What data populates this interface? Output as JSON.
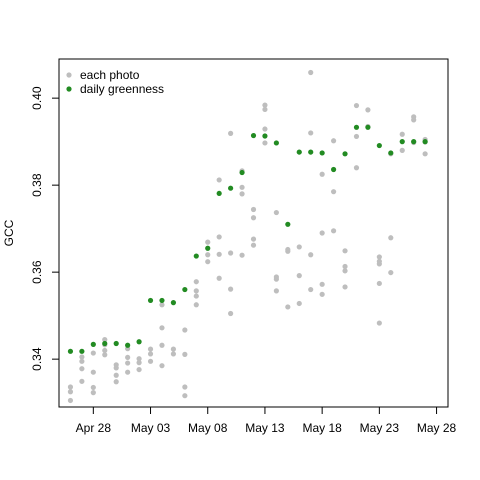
{
  "chart_data": {
    "type": "scatter",
    "title": "",
    "xlabel": "",
    "ylabel": "GCC",
    "xlim": [
      "2016-04-25",
      "2016-05-29"
    ],
    "ylim": [
      0.329,
      0.409
    ],
    "x_ticks": [
      {
        "date": "2016-04-28",
        "label": "Apr 28"
      },
      {
        "date": "2016-05-03",
        "label": "May 03"
      },
      {
        "date": "2016-05-08",
        "label": "May 08"
      },
      {
        "date": "2016-05-13",
        "label": "May 13"
      },
      {
        "date": "2016-05-18",
        "label": "May 18"
      },
      {
        "date": "2016-05-23",
        "label": "May 23"
      },
      {
        "date": "2016-05-28",
        "label": "May 28"
      }
    ],
    "y_ticks": [
      {
        "value": 0.34,
        "label": "0.34"
      },
      {
        "value": 0.36,
        "label": "0.36"
      },
      {
        "value": 0.38,
        "label": "0.38"
      },
      {
        "value": 0.4,
        "label": "0.40"
      }
    ],
    "grid": false,
    "legend_position": "top-left",
    "series": [
      {
        "name": "each photo",
        "color": "#bebebe",
        "points": [
          [
            "2016-04-26",
            0.3305
          ],
          [
            "2016-04-26",
            0.3325
          ],
          [
            "2016-04-26",
            0.3336
          ],
          [
            "2016-04-27",
            0.3349
          ],
          [
            "2016-04-27",
            0.3378
          ],
          [
            "2016-04-27",
            0.3395
          ],
          [
            "2016-04-27",
            0.3405
          ],
          [
            "2016-04-28",
            0.3323
          ],
          [
            "2016-04-28",
            0.3335
          ],
          [
            "2016-04-28",
            0.337
          ],
          [
            "2016-04-28",
            0.3414
          ],
          [
            "2016-04-29",
            0.341
          ],
          [
            "2016-04-29",
            0.342
          ],
          [
            "2016-04-29",
            0.3433
          ],
          [
            "2016-04-29",
            0.3445
          ],
          [
            "2016-04-30",
            0.3348
          ],
          [
            "2016-04-30",
            0.3363
          ],
          [
            "2016-04-30",
            0.338
          ],
          [
            "2016-04-30",
            0.3387
          ],
          [
            "2016-05-01",
            0.337
          ],
          [
            "2016-05-01",
            0.3391
          ],
          [
            "2016-05-01",
            0.3404
          ],
          [
            "2016-05-01",
            0.3424
          ],
          [
            "2016-05-02",
            0.3376
          ],
          [
            "2016-05-02",
            0.3392
          ],
          [
            "2016-05-02",
            0.3401
          ],
          [
            "2016-05-03",
            0.3395
          ],
          [
            "2016-05-03",
            0.3412
          ],
          [
            "2016-05-03",
            0.3423
          ],
          [
            "2016-05-04",
            0.3385
          ],
          [
            "2016-05-04",
            0.3432
          ],
          [
            "2016-05-04",
            0.3472
          ],
          [
            "2016-05-04",
            0.3525
          ],
          [
            "2016-05-05",
            0.3412
          ],
          [
            "2016-05-05",
            0.3423
          ],
          [
            "2016-05-06",
            0.3316
          ],
          [
            "2016-05-06",
            0.3336
          ],
          [
            "2016-05-06",
            0.3411
          ],
          [
            "2016-05-06",
            0.3467
          ],
          [
            "2016-05-07",
            0.3525
          ],
          [
            "2016-05-07",
            0.3545
          ],
          [
            "2016-05-07",
            0.3557
          ],
          [
            "2016-05-07",
            0.3578
          ],
          [
            "2016-05-08",
            0.3624
          ],
          [
            "2016-05-08",
            0.364
          ],
          [
            "2016-05-08",
            0.3669
          ],
          [
            "2016-05-09",
            0.3586
          ],
          [
            "2016-05-09",
            0.3641
          ],
          [
            "2016-05-09",
            0.3681
          ],
          [
            "2016-05-09",
            0.3812
          ],
          [
            "2016-05-10",
            0.3505
          ],
          [
            "2016-05-10",
            0.3561
          ],
          [
            "2016-05-10",
            0.3644
          ],
          [
            "2016-05-10",
            0.3919
          ],
          [
            "2016-05-11",
            0.3639
          ],
          [
            "2016-05-11",
            0.378
          ],
          [
            "2016-05-11",
            0.3795
          ],
          [
            "2016-05-11",
            0.3833
          ],
          [
            "2016-05-12",
            0.3662
          ],
          [
            "2016-05-12",
            0.3676
          ],
          [
            "2016-05-12",
            0.3725
          ],
          [
            "2016-05-12",
            0.3744
          ],
          [
            "2016-05-13",
            0.3897
          ],
          [
            "2016-05-13",
            0.3929
          ],
          [
            "2016-05-13",
            0.3974
          ],
          [
            "2016-05-13",
            0.3984
          ],
          [
            "2016-05-14",
            0.3557
          ],
          [
            "2016-05-14",
            0.3584
          ],
          [
            "2016-05-14",
            0.3589
          ],
          [
            "2016-05-14",
            0.3737
          ],
          [
            "2016-05-15",
            0.352
          ],
          [
            "2016-05-15",
            0.3648
          ],
          [
            "2016-05-15",
            0.3652
          ],
          [
            "2016-05-16",
            0.3528
          ],
          [
            "2016-05-16",
            0.3592
          ],
          [
            "2016-05-16",
            0.3658
          ],
          [
            "2016-05-17",
            0.356
          ],
          [
            "2016-05-17",
            0.364
          ],
          [
            "2016-05-17",
            0.392
          ],
          [
            "2016-05-17",
            0.4059
          ],
          [
            "2016-05-18",
            0.3549
          ],
          [
            "2016-05-18",
            0.3572
          ],
          [
            "2016-05-18",
            0.369
          ],
          [
            "2016-05-18",
            0.3825
          ],
          [
            "2016-05-19",
            0.3695
          ],
          [
            "2016-05-19",
            0.3785
          ],
          [
            "2016-05-19",
            0.3902
          ],
          [
            "2016-05-20",
            0.3566
          ],
          [
            "2016-05-20",
            0.3603
          ],
          [
            "2016-05-20",
            0.3613
          ],
          [
            "2016-05-20",
            0.3649
          ],
          [
            "2016-05-21",
            0.384
          ],
          [
            "2016-05-21",
            0.3912
          ],
          [
            "2016-05-21",
            0.3983
          ],
          [
            "2016-05-22",
            0.3935
          ],
          [
            "2016-05-22",
            0.3973
          ],
          [
            "2016-05-23",
            0.3483
          ],
          [
            "2016-05-23",
            0.3574
          ],
          [
            "2016-05-23",
            0.3619
          ],
          [
            "2016-05-23",
            0.3625
          ],
          [
            "2016-05-23",
            0.3635
          ],
          [
            "2016-05-24",
            0.3599
          ],
          [
            "2016-05-24",
            0.3679
          ],
          [
            "2016-05-24",
            0.3872
          ],
          [
            "2016-05-25",
            0.388
          ],
          [
            "2016-05-25",
            0.3917
          ],
          [
            "2016-05-26",
            0.3898
          ],
          [
            "2016-05-26",
            0.395
          ],
          [
            "2016-05-26",
            0.3957
          ],
          [
            "2016-05-27",
            0.3872
          ],
          [
            "2016-05-27",
            0.3899
          ],
          [
            "2016-05-27",
            0.3905
          ]
        ]
      },
      {
        "name": "daily greenness",
        "color": "#228b22",
        "points": [
          [
            "2016-04-26",
            0.3418
          ],
          [
            "2016-04-27",
            0.3418
          ],
          [
            "2016-04-28",
            0.3434
          ],
          [
            "2016-04-29",
            0.3436
          ],
          [
            "2016-04-30",
            0.3436
          ],
          [
            "2016-05-01",
            0.3432
          ],
          [
            "2016-05-02",
            0.344
          ],
          [
            "2016-05-03",
            0.3535
          ],
          [
            "2016-05-04",
            0.3535
          ],
          [
            "2016-05-05",
            0.353
          ],
          [
            "2016-05-06",
            0.356
          ],
          [
            "2016-05-07",
            0.3637
          ],
          [
            "2016-05-08",
            0.3655
          ],
          [
            "2016-05-09",
            0.3781
          ],
          [
            "2016-05-10",
            0.3793
          ],
          [
            "2016-05-11",
            0.3829
          ],
          [
            "2016-05-12",
            0.3914
          ],
          [
            "2016-05-13",
            0.3913
          ],
          [
            "2016-05-14",
            0.3897
          ],
          [
            "2016-05-15",
            0.371
          ],
          [
            "2016-05-16",
            0.3876
          ],
          [
            "2016-05-17",
            0.3876
          ],
          [
            "2016-05-18",
            0.3874
          ],
          [
            "2016-05-19",
            0.3836
          ],
          [
            "2016-05-20",
            0.3872
          ],
          [
            "2016-05-21",
            0.3933
          ],
          [
            "2016-05-22",
            0.3933
          ],
          [
            "2016-05-23",
            0.3891
          ],
          [
            "2016-05-24",
            0.3874
          ],
          [
            "2016-05-25",
            0.39
          ],
          [
            "2016-05-26",
            0.39
          ],
          [
            "2016-05-27",
            0.39
          ]
        ]
      }
    ]
  }
}
